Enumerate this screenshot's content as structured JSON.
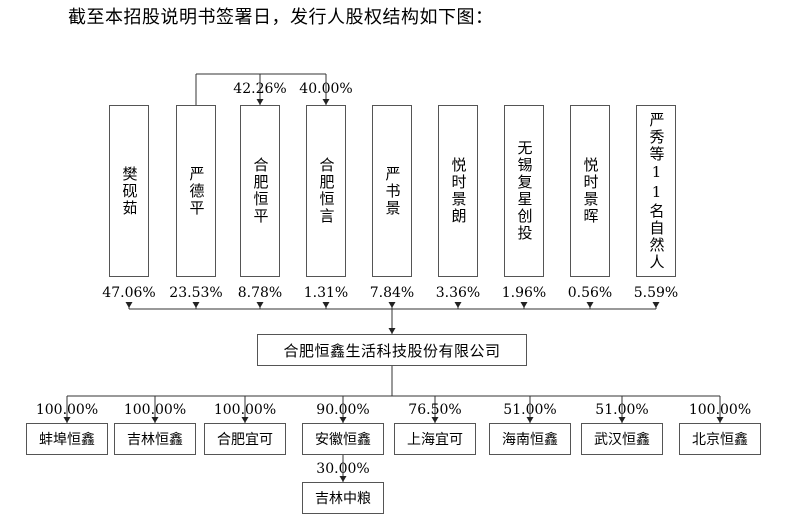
{
  "title": "截至本招股说明书签署日，发行人股权结构如下图：",
  "shareholders": [
    {
      "name": "樊砚茹",
      "pct": "47.06%"
    },
    {
      "name": "严德平",
      "pct": "23.53%"
    },
    {
      "name": "合肥恒平",
      "pct": "8.78%"
    },
    {
      "name": "合肥恒言",
      "pct": "1.31%"
    },
    {
      "name": "严书景",
      "pct": "7.84%"
    },
    {
      "name": "悦时景朗",
      "pct": "3.36%"
    },
    {
      "name": "无锡复星创投",
      "pct": "1.96%"
    },
    {
      "name": "悦时景晖",
      "pct": "0.56%"
    },
    {
      "name": "严秀等11名自然人",
      "pct": "5.59%"
    }
  ],
  "controller_links": [
    {
      "target": "合肥恒平",
      "pct": "42.26%"
    },
    {
      "target": "合肥恒言",
      "pct": "40.00%"
    }
  ],
  "company": "合肥恒鑫生活科技股份有限公司",
  "subsidiaries": [
    {
      "name": "蚌埠恒鑫",
      "pct": "100.00%"
    },
    {
      "name": "吉林恒鑫",
      "pct": "100.00%"
    },
    {
      "name": "合肥宜可",
      "pct": "100.00%"
    },
    {
      "name": "安徽恒鑫",
      "pct": "90.00%"
    },
    {
      "name": "上海宜可",
      "pct": "76.50%"
    },
    {
      "name": "海南恒鑫",
      "pct": "51.00%"
    },
    {
      "name": "武汉恒鑫",
      "pct": "51.00%"
    },
    {
      "name": "北京恒鑫",
      "pct": "100.00%"
    }
  ],
  "sub_subsidiary": {
    "parent": "安徽恒鑫",
    "name": "吉林中粮",
    "pct": "30.00%"
  }
}
